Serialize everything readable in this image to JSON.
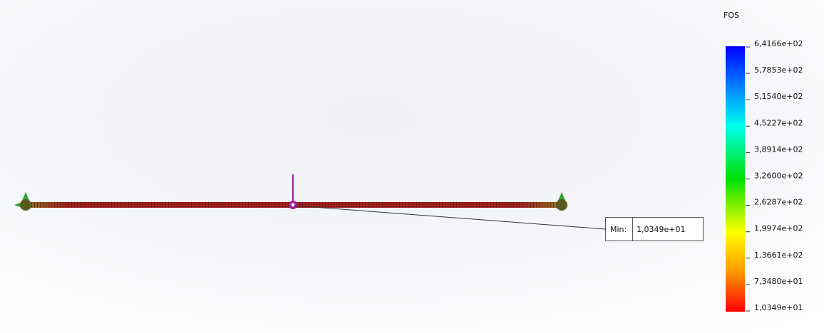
{
  "legend": {
    "title": "FOS",
    "labels": [
      "6,4166e+02",
      "5,7853e+02",
      "5,1540e+02",
      "4,5227e+02",
      "3,8914e+02",
      "3,2600e+02",
      "2,6287e+02",
      "1,9974e+02",
      "1,3661e+02",
      "7,3480e+01",
      "1,0349e+01"
    ]
  },
  "probe": {
    "label": "Min:",
    "value": "1,0349e+01"
  }
}
